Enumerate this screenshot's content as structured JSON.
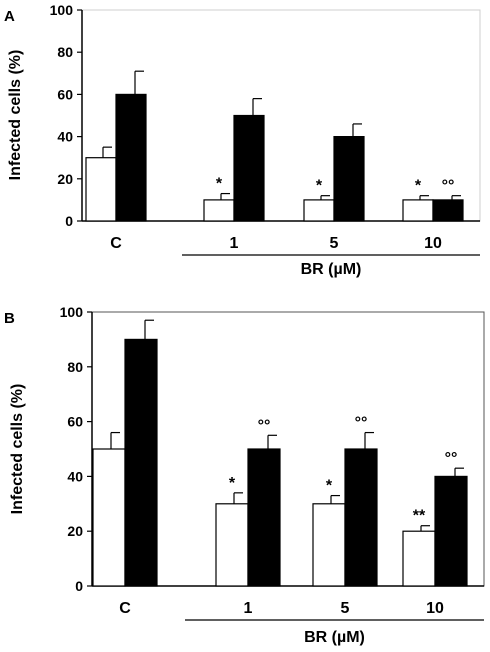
{
  "chart_data": [
    {
      "type": "bar",
      "panel_label": "A",
      "ylabel": "Infected  cells (%)",
      "ylim": [
        0,
        100
      ],
      "yticks": [
        0,
        20,
        40,
        60,
        80,
        100
      ],
      "categories": [
        "C",
        "1",
        "5",
        "10"
      ],
      "group_label": "BR (µM)",
      "grouped_categories": [
        "1",
        "5",
        "10"
      ],
      "series": [
        {
          "color": "#ffffff",
          "values": [
            30,
            10,
            10,
            10
          ],
          "errors": [
            5,
            3,
            2,
            2
          ],
          "marks": [
            "",
            "*",
            "*",
            "*"
          ]
        },
        {
          "color": "#000000",
          "values": [
            60,
            50,
            40,
            10
          ],
          "errors": [
            11,
            8,
            6,
            2
          ],
          "marks": [
            "",
            "",
            "",
            "°°"
          ]
        }
      ]
    },
    {
      "type": "bar",
      "panel_label": "B",
      "ylabel": "Infected  cells (%)",
      "ylim": [
        0,
        100
      ],
      "yticks": [
        0,
        20,
        40,
        60,
        80,
        100
      ],
      "categories": [
        "C",
        "1",
        "5",
        "10"
      ],
      "group_label": "BR (µM)",
      "grouped_categories": [
        "1",
        "5",
        "10"
      ],
      "series": [
        {
          "color": "#ffffff",
          "values": [
            50,
            30,
            30,
            20
          ],
          "errors": [
            6,
            4,
            3,
            2
          ],
          "marks": [
            "",
            "*",
            "*",
            "**"
          ]
        },
        {
          "color": "#000000",
          "values": [
            90,
            50,
            50,
            40
          ],
          "errors": [
            7,
            5,
            6,
            3
          ],
          "marks": [
            "",
            "°°",
            "°°",
            "°°"
          ]
        }
      ]
    }
  ]
}
